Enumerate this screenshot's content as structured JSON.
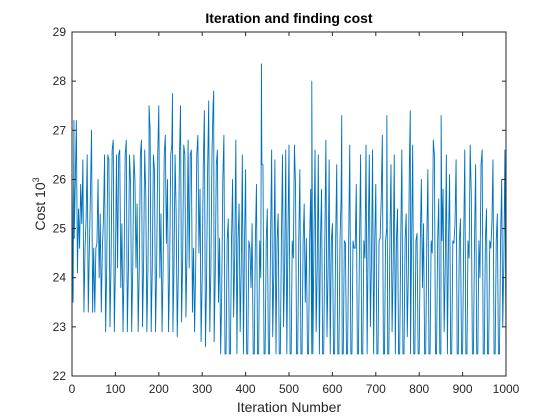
{
  "chart_data": {
    "type": "line",
    "title": "Iteration and finding cost",
    "xlabel": "Iteration Number",
    "ylabel": {
      "text": "Cost 10",
      "superscript": "3"
    },
    "xlim": [
      0,
      1000
    ],
    "ylim": [
      22,
      29
    ],
    "xticks": [
      0,
      100,
      200,
      300,
      400,
      500,
      600,
      700,
      800,
      900,
      1000
    ],
    "yticks": [
      22,
      23,
      24,
      25,
      26,
      27,
      28,
      29
    ],
    "grid": false,
    "box": true,
    "colors": {
      "line": "#0072BD",
      "axes": "#262626"
    },
    "series": [
      {
        "description": "approximate noisy cost trace, sampled every 5 iterations",
        "x_step": 5,
        "x_start": 0,
        "values": [
          26.1,
          24.8,
          27.2,
          25.4,
          25.9,
          26.4,
          24.6,
          26.5,
          24.6,
          27.0,
          24.6,
          24.6,
          26.0,
          25.3,
          24.6,
          26.5,
          24.2,
          26.4,
          24.3,
          26.8,
          24.2,
          24.2,
          26.6,
          25.1,
          24.2,
          26.8,
          24.2,
          25.9,
          24.2,
          26.0,
          25.5,
          24.2,
          26.8,
          24.3,
          25.7,
          24.2,
          27.0,
          24.2,
          26.2,
          24.2,
          27.5,
          25.3,
          24.2,
          26.9,
          26.0,
          24.2,
          26.7,
          24.2,
          25.3,
          24.1,
          27.5,
          24.4,
          26.5,
          24.5,
          24.2,
          26.6,
          24.6,
          24.2,
          26.9,
          25.8,
          24.0,
          27.4,
          23.9,
          27.6,
          24.2,
          27.5,
          24.0,
          26.6,
          24.8,
          23.7,
          26.9,
          22.45,
          25.2,
          22.45,
          26.0,
          24.5,
          22.45,
          25.5,
          24.2,
          22.45,
          26.2,
          22.45,
          24.6,
          25.1,
          22.45,
          25.9,
          22.45,
          24.0,
          26.3,
          22.45,
          25.4,
          22.45,
          26.6,
          24.1,
          22.45,
          25.3,
          22.45,
          26.5,
          24.3,
          22.45,
          26.7,
          22.45,
          24.4,
          25.9,
          22.45,
          26.2,
          22.45,
          25.5,
          24.8,
          22.45,
          25.8,
          22.45,
          26.6,
          24.2,
          22.45,
          25.8,
          22.45,
          26.8,
          24.1,
          22.45,
          25.1,
          22.45,
          26.3,
          22.45,
          25.6,
          22.45,
          24.7,
          22.45,
          26.7,
          22.45,
          24.6,
          25.9,
          22.45,
          26.5,
          22.45,
          24.4,
          22.45,
          26.5,
          24.3,
          22.45,
          25.9,
          22.45,
          24.8,
          26.9,
          22.45,
          25.0,
          22.45,
          26.3,
          24.2,
          22.45,
          25.4,
          22.45,
          26.6,
          22.45,
          25.3,
          24.1,
          22.45,
          26.7,
          22.45,
          24.9,
          22.45,
          26.0,
          25.1,
          22.45,
          26.2,
          22.45,
          24.5,
          26.5,
          22.45,
          25.6,
          22.45,
          25.8,
          24.2,
          22.45,
          26.1,
          22.45,
          24.7,
          26.4,
          22.45,
          25.2,
          22.45,
          26.6,
          22.45,
          24.4,
          25.7,
          22.45,
          26.3,
          22.45,
          24.0,
          26.6,
          22.45,
          25.4,
          22.45,
          24.6,
          26.4,
          22.45,
          25.3,
          22.45,
          26.0,
          24.3,
          22.45
        ],
        "spikes": [
          {
            "x": 437,
            "y": 28.35
          },
          {
            "x": 553,
            "y": 28.0
          },
          {
            "x": 327,
            "y": 27.8
          },
          {
            "x": 232,
            "y": 27.75
          },
          {
            "x": 622,
            "y": 27.3
          },
          {
            "x": 726,
            "y": 27.3
          },
          {
            "x": 780,
            "y": 27.4
          },
          {
            "x": 851,
            "y": 27.3
          },
          {
            "x": 178,
            "y": 27.5
          },
          {
            "x": 5,
            "y": 27.2
          }
        ]
      }
    ]
  }
}
